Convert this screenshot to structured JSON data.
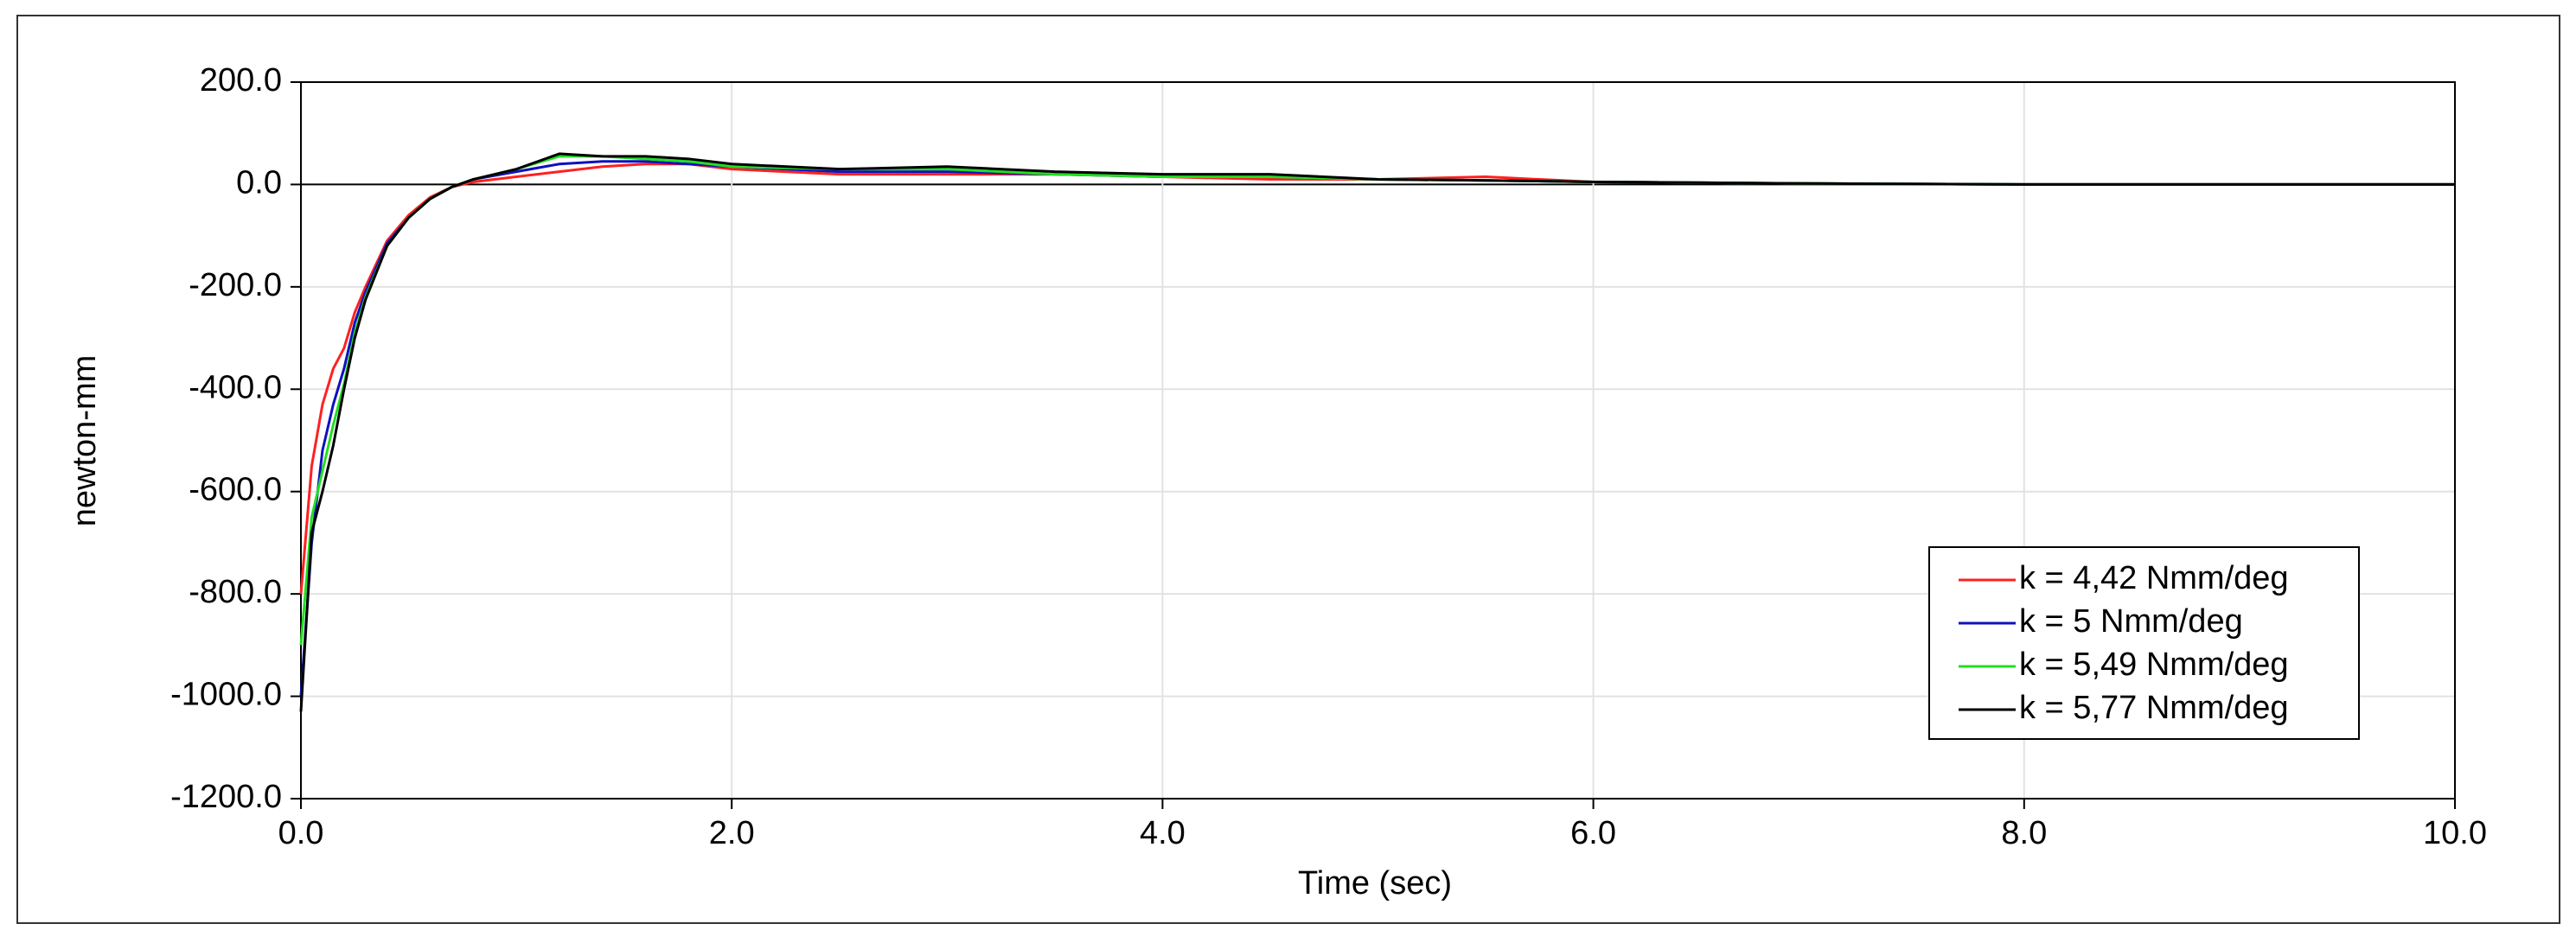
{
  "chart_data": {
    "type": "line",
    "xlabel": "Time (sec)",
    "ylabel": "newton-mm",
    "x": [
      0,
      0.05,
      0.1,
      0.15,
      0.2,
      0.25,
      0.3,
      0.4,
      0.5,
      0.6,
      0.7,
      0.8,
      1.0,
      1.2,
      1.4,
      1.6,
      1.8,
      2.0,
      2.5,
      3.0,
      3.5,
      4.0,
      4.5,
      5.0,
      5.5,
      6.0,
      7.0,
      8.0,
      9.0,
      10.0
    ],
    "series": [
      {
        "name": "k = 4,42 Nmm/deg",
        "color": "#ff2020",
        "values": [
          -800,
          -550,
          -430,
          -360,
          -320,
          -250,
          -200,
          -110,
          -60,
          -25,
          -5,
          5,
          15,
          25,
          35,
          40,
          40,
          30,
          20,
          20,
          20,
          15,
          10,
          10,
          15,
          5,
          2,
          0,
          0,
          0
        ]
      },
      {
        "name": "k = 5 Nmm/deg",
        "color": "#1010c0",
        "values": [
          -1000,
          -700,
          -520,
          -430,
          -360,
          -270,
          -210,
          -115,
          -65,
          -28,
          -5,
          10,
          25,
          40,
          45,
          45,
          40,
          35,
          25,
          25,
          20,
          15,
          15,
          10,
          8,
          5,
          2,
          0,
          0,
          0
        ]
      },
      {
        "name": "k = 5,49 Nmm/deg",
        "color": "#20e020",
        "values": [
          -900,
          -650,
          -560,
          -470,
          -390,
          -290,
          -220,
          -120,
          -65,
          -28,
          -5,
          10,
          30,
          55,
          55,
          50,
          45,
          35,
          30,
          30,
          20,
          15,
          15,
          10,
          8,
          5,
          2,
          0,
          0,
          0
        ]
      },
      {
        "name": "k = 5,77 Nmm/deg",
        "color": "#000000",
        "values": [
          -1030,
          -680,
          -600,
          -510,
          -400,
          -300,
          -225,
          -120,
          -65,
          -28,
          -5,
          10,
          30,
          60,
          55,
          55,
          50,
          40,
          30,
          35,
          25,
          20,
          20,
          10,
          8,
          5,
          2,
          0,
          0,
          0
        ]
      }
    ],
    "xlim": [
      0,
      10
    ],
    "ylim": [
      -1200,
      200
    ],
    "xticks": [
      {
        "value": 0,
        "label": "0.0"
      },
      {
        "value": 2,
        "label": "2.0"
      },
      {
        "value": 4,
        "label": "4.0"
      },
      {
        "value": 6,
        "label": "6.0"
      },
      {
        "value": 8,
        "label": "8.0"
      },
      {
        "value": 10,
        "label": "10.0"
      }
    ],
    "yticks": [
      {
        "value": -1200,
        "label": "-1200.0"
      },
      {
        "value": -1000,
        "label": "-1000.0"
      },
      {
        "value": -800,
        "label": "-800.0"
      },
      {
        "value": -600,
        "label": "-600.0"
      },
      {
        "value": -400,
        "label": "-400.0"
      },
      {
        "value": -200,
        "label": "-200.0"
      },
      {
        "value": 0,
        "label": "0.0"
      },
      {
        "value": 200,
        "label": "200.0"
      }
    ],
    "grid": true,
    "legend": "lower right"
  }
}
